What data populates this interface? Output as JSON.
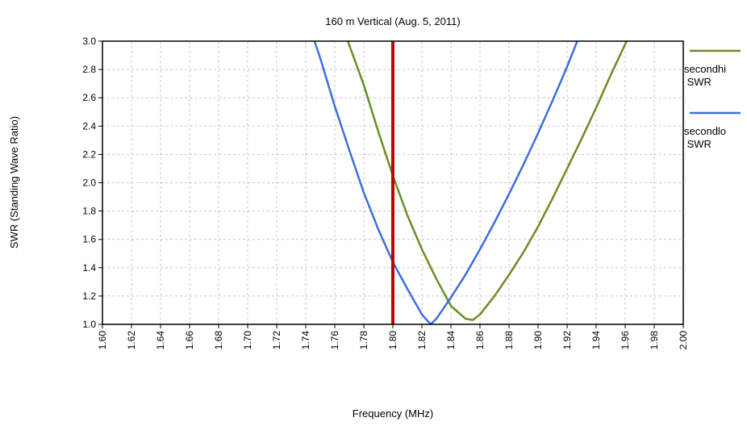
{
  "chart_data": {
    "type": "line",
    "title": "160 m Vertical (Aug. 5, 2011)",
    "xlabel": "Frequency (MHz)",
    "ylabel": "SWR  (Standing Wave Ratio)",
    "xlim": [
      1.6,
      2.0
    ],
    "ylim": [
      1.0,
      3.0
    ],
    "x_ticks": [
      "1.60",
      "1.62",
      "1.64",
      "1.66",
      "1.68",
      "1.70",
      "1.72",
      "1.74",
      "1.76",
      "1.78",
      "1.80",
      "1.82",
      "1.84",
      "1.86",
      "1.88",
      "1.90",
      "1.92",
      "1.94",
      "1.96",
      "1.98",
      "2.00"
    ],
    "y_ticks": [
      "1.0",
      "1.2",
      "1.4",
      "1.6",
      "1.8",
      "2.0",
      "2.2",
      "2.4",
      "2.6",
      "2.8",
      "3.0"
    ],
    "grid": true,
    "legend_position": "right",
    "marker_line": {
      "x": 1.8,
      "color": "#c00000"
    },
    "series": [
      {
        "name": "secondhi\n SWR",
        "color": "#6b8e23",
        "x": [
          1.769,
          1.78,
          1.79,
          1.8,
          1.81,
          1.82,
          1.83,
          1.84,
          1.85,
          1.855,
          1.86,
          1.87,
          1.88,
          1.89,
          1.9,
          1.91,
          1.92,
          1.93,
          1.94,
          1.95,
          1.961
        ],
        "y": [
          3.0,
          2.69,
          2.36,
          2.05,
          1.77,
          1.53,
          1.32,
          1.13,
          1.04,
          1.03,
          1.07,
          1.2,
          1.35,
          1.51,
          1.69,
          1.89,
          2.1,
          2.31,
          2.53,
          2.76,
          3.0
        ]
      },
      {
        "name": "secondlo\n SWR",
        "color": "#3d6ee0",
        "x": [
          1.746,
          1.75,
          1.76,
          1.77,
          1.78,
          1.79,
          1.8,
          1.81,
          1.82,
          1.826,
          1.83,
          1.84,
          1.85,
          1.86,
          1.87,
          1.88,
          1.89,
          1.9,
          1.91,
          1.92,
          1.927
        ],
        "y": [
          3.0,
          2.88,
          2.54,
          2.23,
          1.93,
          1.67,
          1.44,
          1.25,
          1.07,
          1.0,
          1.04,
          1.19,
          1.35,
          1.53,
          1.72,
          1.92,
          2.13,
          2.35,
          2.58,
          2.82,
          3.0
        ]
      }
    ]
  }
}
